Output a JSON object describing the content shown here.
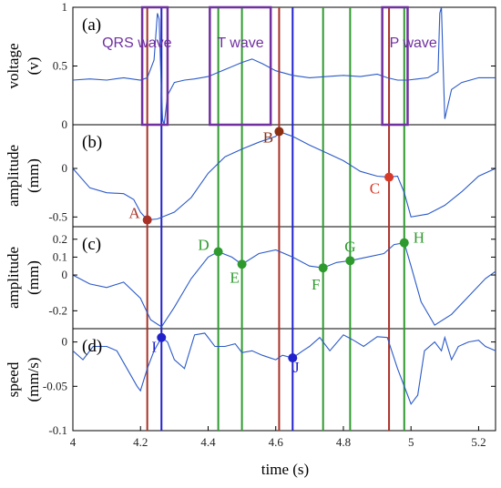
{
  "chart_data": {
    "type": "line",
    "colors": {
      "signal": "#2b5ac8",
      "red": "#a83228",
      "blue": "#2222cc",
      "green": "#2e9a2e",
      "purple": "#7030a0",
      "point_brown": "#8b2e12",
      "point_red": "#d83a2a"
    },
    "x_axis": {
      "label": "time (s)",
      "xlim": [
        4.0,
        5.25
      ],
      "ticks": [
        4,
        4.2,
        4.4,
        4.6,
        4.8,
        5,
        5.2
      ],
      "tick_labels": [
        "4",
        "4.2",
        "4.4",
        "4.6",
        "4.8",
        "5",
        "5.2"
      ]
    },
    "vertical_lines": [
      {
        "x": 4.22,
        "color": "red"
      },
      {
        "x": 4.262,
        "color": "blue"
      },
      {
        "x": 4.43,
        "color": "green"
      },
      {
        "x": 4.5,
        "color": "green"
      },
      {
        "x": 4.61,
        "color": "red"
      },
      {
        "x": 4.65,
        "color": "blue"
      },
      {
        "x": 4.74,
        "color": "green"
      },
      {
        "x": 4.82,
        "color": "green"
      },
      {
        "x": 4.935,
        "color": "red"
      },
      {
        "x": 4.98,
        "color": "green"
      }
    ],
    "panels": [
      {
        "id": "a",
        "panel_label": "(a)",
        "ylabel_line1": "voltage",
        "ylabel_line2": "(v)",
        "ylim": [
          0,
          1
        ],
        "yticks": [
          0,
          0.5,
          1
        ],
        "ytick_labels": [
          "0",
          "0.5",
          "1"
        ],
        "series": [
          {
            "x": [
              4.0,
              4.05,
              4.1,
              4.15,
              4.2,
              4.22,
              4.24,
              4.25,
              4.255,
              4.26,
              4.265,
              4.27,
              4.28,
              4.3,
              4.33,
              4.36,
              4.4,
              4.45,
              4.5,
              4.53,
              4.56,
              4.6,
              4.65,
              4.7,
              4.75,
              4.8,
              4.85,
              4.9,
              4.93,
              4.96,
              4.99,
              5.02,
              5.05,
              5.08,
              5.085,
              5.09,
              5.095,
              5.1,
              5.12,
              5.15,
              5.2,
              5.25
            ],
            "y": [
              0.38,
              0.39,
              0.38,
              0.4,
              0.38,
              0.4,
              0.55,
              0.95,
              0.9,
              0.45,
              0.05,
              0.0,
              0.25,
              0.36,
              0.38,
              0.39,
              0.41,
              0.47,
              0.53,
              0.56,
              0.52,
              0.46,
              0.42,
              0.4,
              0.41,
              0.42,
              0.41,
              0.43,
              0.4,
              0.38,
              0.38,
              0.39,
              0.4,
              0.45,
              0.95,
              1.0,
              0.5,
              0.05,
              0.3,
              0.36,
              0.4,
              0.4
            ]
          }
        ],
        "annotations": [
          {
            "label": "QRS wave",
            "x": [
              4.205,
              4.28
            ],
            "y": [
              0,
              1
            ]
          },
          {
            "label": "T wave",
            "x": [
              4.405,
              4.585
            ],
            "y": [
              0,
              1
            ]
          },
          {
            "label": "P wave",
            "x": [
              4.915,
              4.99
            ],
            "y": [
              0,
              1
            ]
          }
        ]
      },
      {
        "id": "b",
        "panel_label": "(b)",
        "ylabel_line1": "amplitude",
        "ylabel_line2": "(mm)",
        "ylim": [
          -0.6,
          0.45
        ],
        "yticks": [
          -0.5,
          0
        ],
        "ytick_labels": [
          "-0.5",
          "0"
        ],
        "series": [
          {
            "x": [
              4.0,
              4.05,
              4.1,
              4.15,
              4.18,
              4.2,
              4.22,
              4.25,
              4.3,
              4.35,
              4.4,
              4.45,
              4.5,
              4.55,
              4.6,
              4.61,
              4.65,
              4.7,
              4.75,
              4.8,
              4.85,
              4.9,
              4.935,
              4.96,
              4.98,
              5.0,
              5.05,
              5.1,
              5.15,
              5.2,
              5.25
            ],
            "y": [
              0.0,
              -0.2,
              -0.25,
              -0.26,
              -0.32,
              -0.45,
              -0.53,
              -0.52,
              -0.45,
              -0.3,
              -0.05,
              0.12,
              0.2,
              0.27,
              0.33,
              0.38,
              0.33,
              0.24,
              0.16,
              0.08,
              -0.03,
              -0.08,
              -0.09,
              -0.08,
              -0.25,
              -0.5,
              -0.47,
              -0.38,
              -0.24,
              -0.08,
              0.0
            ]
          }
        ],
        "points": [
          {
            "label": "A",
            "x": 4.22,
            "y": -0.53,
            "color": "red"
          },
          {
            "label": "B",
            "x": 4.61,
            "y": 0.38,
            "color": "point_brown"
          },
          {
            "label": "C",
            "x": 4.935,
            "y": -0.09,
            "color": "point_red"
          }
        ]
      },
      {
        "id": "c",
        "panel_label": "(c)",
        "ylabel_line1": "amplitude",
        "ylabel_line2": "(mm)",
        "ylim": [
          -0.3,
          0.27
        ],
        "yticks": [
          -0.2,
          0,
          0.1,
          0.2
        ],
        "ytick_labels": [
          "-0.2",
          "0",
          "0.1",
          "0.2"
        ],
        "series": [
          {
            "x": [
              4.0,
              4.05,
              4.1,
              4.15,
              4.2,
              4.23,
              4.262,
              4.3,
              4.35,
              4.4,
              4.43,
              4.47,
              4.5,
              4.55,
              4.6,
              4.65,
              4.7,
              4.74,
              4.78,
              4.82,
              4.87,
              4.92,
              4.95,
              4.98,
              5.0,
              5.03,
              5.07,
              5.12,
              5.17,
              5.22,
              5.25
            ],
            "y": [
              0.0,
              -0.05,
              -0.07,
              -0.04,
              -0.13,
              -0.25,
              -0.29,
              -0.18,
              -0.02,
              0.1,
              0.13,
              0.1,
              0.06,
              0.12,
              0.14,
              0.1,
              0.05,
              0.04,
              0.07,
              0.08,
              0.1,
              0.12,
              0.17,
              0.18,
              0.05,
              -0.15,
              -0.28,
              -0.22,
              -0.12,
              -0.02,
              0.02
            ]
          }
        ],
        "points": [
          {
            "label": "D",
            "x": 4.43,
            "y": 0.13,
            "color": "green"
          },
          {
            "label": "E",
            "x": 4.5,
            "y": 0.06,
            "color": "green"
          },
          {
            "label": "F",
            "x": 4.74,
            "y": 0.04,
            "color": "green"
          },
          {
            "label": "G",
            "x": 4.82,
            "y": 0.08,
            "color": "green"
          },
          {
            "label": "H",
            "x": 4.98,
            "y": 0.18,
            "color": "green"
          }
        ]
      },
      {
        "id": "d",
        "panel_label": "(d)",
        "ylabel_line1": "speed",
        "ylabel_line2": "(mm/s)",
        "ylim": [
          -0.1,
          0.015
        ],
        "yticks": [
          -0.1,
          -0.05,
          0
        ],
        "ytick_labels": [
          "-0.1",
          "-0.05",
          "0"
        ],
        "series": [
          {
            "x": [
              4.0,
              4.03,
              4.06,
              4.1,
              4.13,
              4.16,
              4.19,
              4.2,
              4.22,
              4.24,
              4.262,
              4.28,
              4.3,
              4.33,
              4.36,
              4.39,
              4.42,
              4.45,
              4.48,
              4.5,
              4.53,
              4.56,
              4.6,
              4.62,
              4.65,
              4.68,
              4.7,
              4.73,
              4.76,
              4.8,
              4.83,
              4.86,
              4.9,
              4.93,
              4.96,
              4.99,
              5.0,
              5.02,
              5.04,
              5.07,
              5.09,
              5.1,
              5.12,
              5.14,
              5.17,
              5.2,
              5.22,
              5.25
            ],
            "y": [
              -0.01,
              -0.02,
              -0.005,
              -0.005,
              -0.01,
              -0.03,
              -0.05,
              -0.055,
              -0.03,
              -0.01,
              0.005,
              0.0,
              -0.02,
              -0.03,
              0.008,
              0.01,
              -0.005,
              -0.005,
              -0.002,
              -0.012,
              -0.01,
              -0.015,
              -0.02,
              -0.015,
              -0.018,
              -0.01,
              -0.005,
              0.005,
              -0.01,
              0.008,
              0.002,
              -0.005,
              0.006,
              0.005,
              -0.03,
              -0.06,
              -0.07,
              -0.06,
              -0.01,
              0.0,
              -0.01,
              0.005,
              -0.02,
              -0.005,
              0.0,
              0.002,
              -0.005,
              -0.01
            ]
          }
        ],
        "points": [
          {
            "label": "I",
            "x": 4.262,
            "y": 0.005,
            "color": "blue"
          },
          {
            "label": "J",
            "x": 4.65,
            "y": -0.018,
            "color": "blue"
          }
        ]
      }
    ]
  }
}
